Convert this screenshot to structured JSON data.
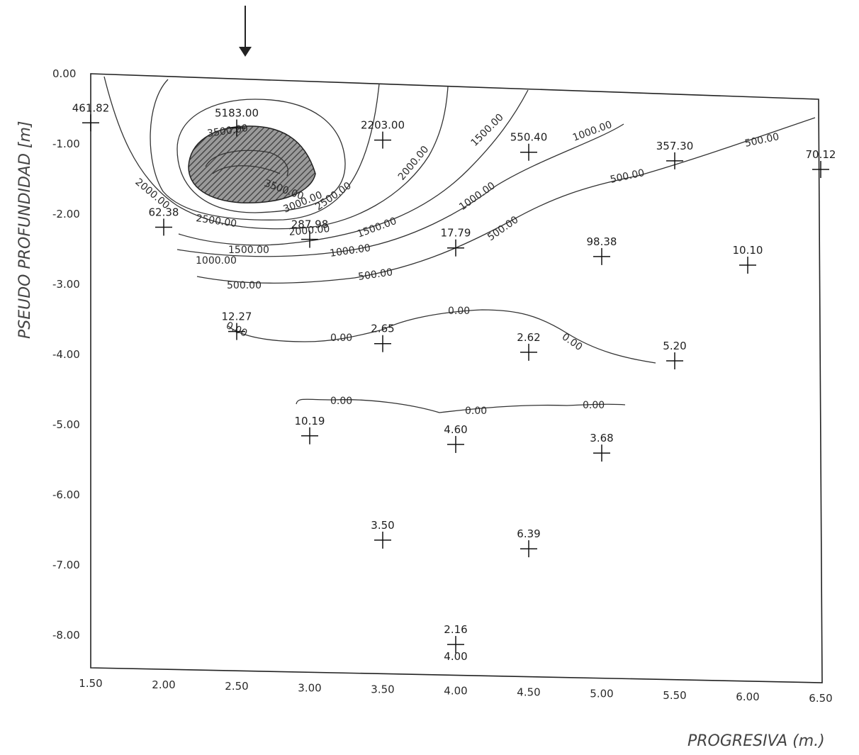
{
  "chart_data": {
    "type": "contour",
    "xlabel": "PROGRESIVA (m.)",
    "ylabel": "PSEUDO PROFUNDIDAD [m]",
    "x_ticks": [
      "1.50",
      "2.00",
      "2.50",
      "3.00",
      "3.50",
      "4.00",
      "4.50",
      "5.00",
      "5.50",
      "6.00",
      "6.50"
    ],
    "y_ticks": [
      "0.00",
      "-1.00",
      "-2.00",
      "-3.00",
      "-4.00",
      "-5.00",
      "-6.00",
      "-7.00",
      "-8.00"
    ],
    "xlim": [
      1.5,
      6.5
    ],
    "ylim": [
      -8.5,
      0
    ],
    "points": [
      {
        "x": 1.5,
        "y": -0.7,
        "label": "461.82"
      },
      {
        "x": 2.5,
        "y": -0.7,
        "label": "5183.00"
      },
      {
        "x": 3.5,
        "y": -0.8,
        "label": "2203.00"
      },
      {
        "x": 4.5,
        "y": -0.9,
        "label": "550.40"
      },
      {
        "x": 5.5,
        "y": -0.95,
        "label": "357.30"
      },
      {
        "x": 6.5,
        "y": -1.0,
        "label": "70.12"
      },
      {
        "x": 2.0,
        "y": -2.15,
        "label": "62.38"
      },
      {
        "x": 3.0,
        "y": -2.25,
        "label": "287.98"
      },
      {
        "x": 4.0,
        "y": -2.3,
        "label": "17.79"
      },
      {
        "x": 5.0,
        "y": -2.35,
        "label": "98.38"
      },
      {
        "x": 6.0,
        "y": -2.4,
        "label": "10.10"
      },
      {
        "x": 2.5,
        "y": -3.6,
        "label": "12.27"
      },
      {
        "x": 3.5,
        "y": -3.7,
        "label": "2.65"
      },
      {
        "x": 4.5,
        "y": -3.75,
        "label": "2.62"
      },
      {
        "x": 5.5,
        "y": -3.8,
        "label": "5.20"
      },
      {
        "x": 3.0,
        "y": -5.05,
        "label": "10.19"
      },
      {
        "x": 4.0,
        "y": -5.1,
        "label": "4.60"
      },
      {
        "x": 5.0,
        "y": -5.15,
        "label": "3.68"
      },
      {
        "x": 3.5,
        "y": -6.5,
        "label": "3.50"
      },
      {
        "x": 4.5,
        "y": -6.55,
        "label": "6.39"
      },
      {
        "x": 4.0,
        "y": -7.95,
        "label": "2.16"
      }
    ],
    "extra_labels": [
      "4.00"
    ],
    "contour_levels": [
      "3500.00",
      "3000.00",
      "2500.00",
      "2000.00",
      "1500.00",
      "1000.00",
      "500.00",
      "0.00"
    ],
    "marker": "arrow at x=2.50"
  }
}
